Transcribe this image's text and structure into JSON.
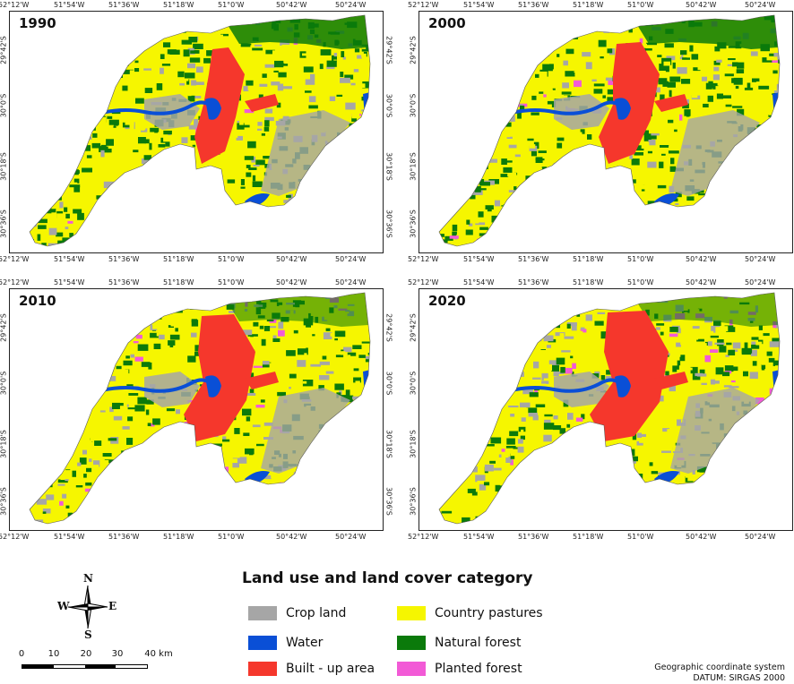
{
  "maps": [
    {
      "year": "1990"
    },
    {
      "year": "2000"
    },
    {
      "year": "2010"
    },
    {
      "year": "2020"
    }
  ],
  "longitude_ticks": [
    "52°12'W",
    "51°54'W",
    "51°36'W",
    "51°18'W",
    "51°0'W",
    "50°42'W",
    "50°24'W"
  ],
  "latitude_ticks": [
    "29°42'S",
    "30°0'S",
    "30°18'S",
    "30°36'S"
  ],
  "legend": {
    "title": "Land use and land cover category",
    "items": [
      {
        "label": "Crop land",
        "color": "#a6a6a6"
      },
      {
        "label": "Water",
        "color": "#0a4fd6"
      },
      {
        "label": "Built - up area",
        "color": "#f5372c"
      },
      {
        "label": "Country pastures",
        "color": "#f6f600"
      },
      {
        "label": "Natural forest",
        "color": "#0b7a0b"
      },
      {
        "label": "Planted forest",
        "color": "#f25ad6"
      }
    ]
  },
  "compass": {
    "n": "N",
    "s": "S",
    "e": "E",
    "w": "W"
  },
  "scale": {
    "labels": [
      "0",
      "10",
      "20",
      "30",
      "40 km"
    ]
  },
  "crs": {
    "line1": "Geographic coordinate system",
    "line2": "DATUM: SIRGAS 2000"
  }
}
